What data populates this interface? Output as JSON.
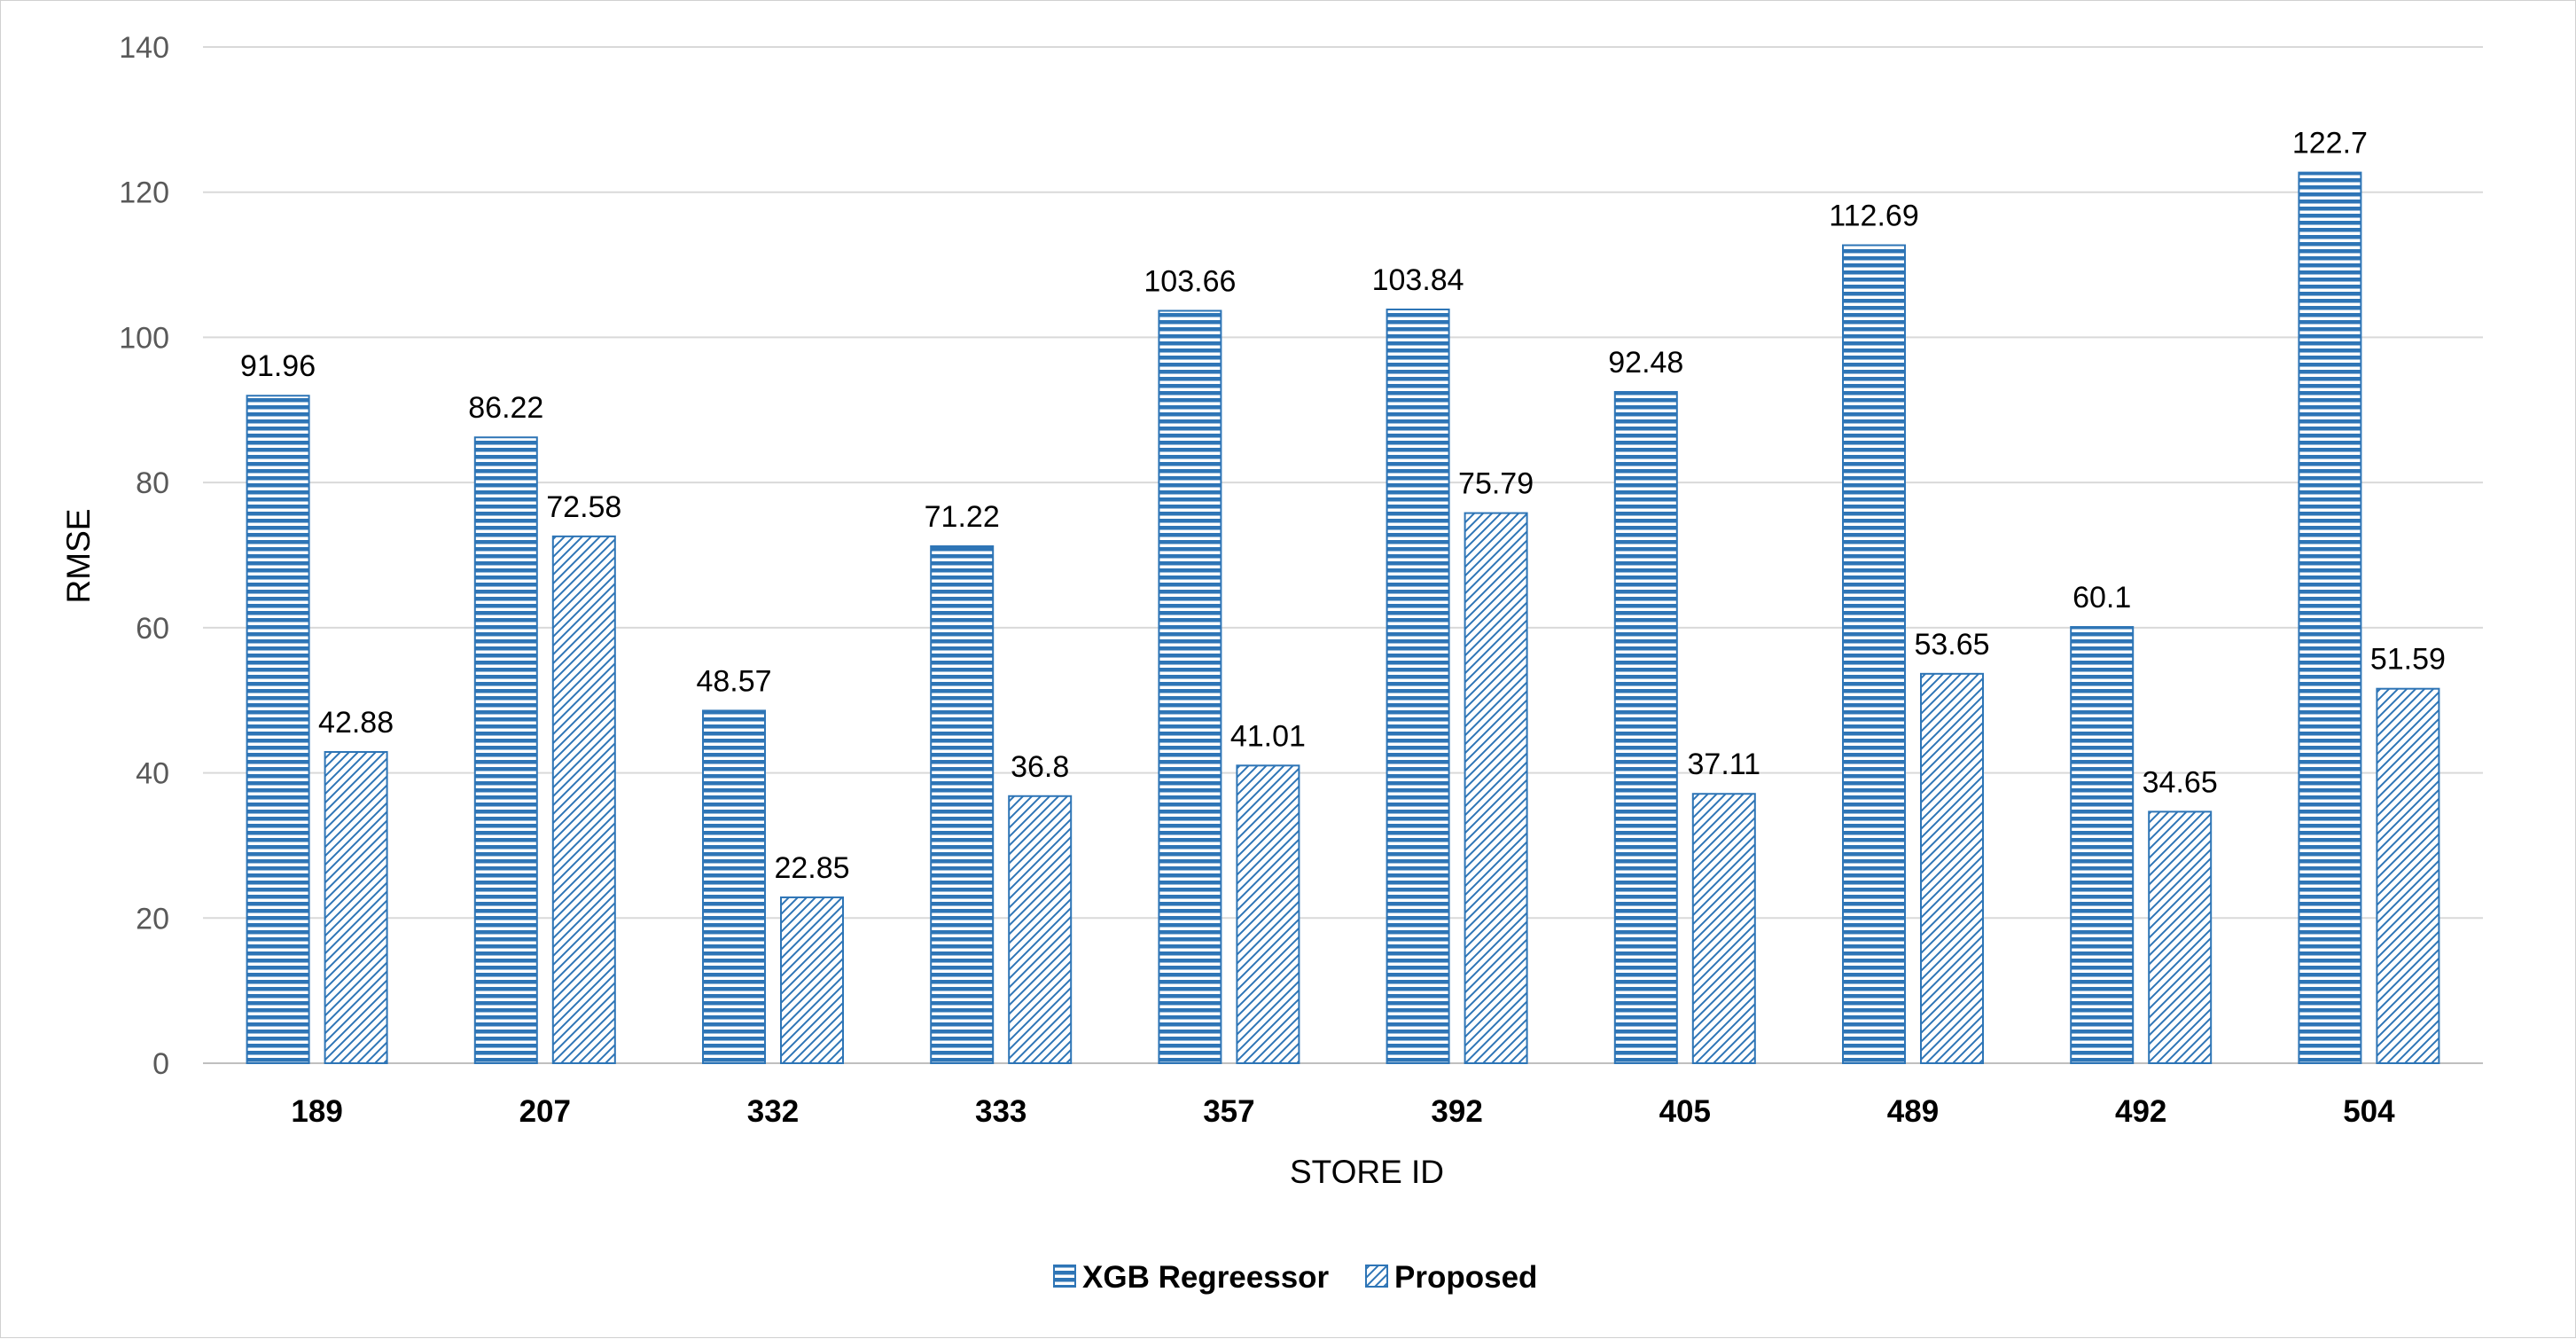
{
  "chart_data": {
    "type": "bar",
    "title": "",
    "xlabel": "STORE ID",
    "ylabel": "RMSE",
    "ylim": [
      0,
      140
    ],
    "yticks": [
      0,
      20,
      40,
      60,
      80,
      100,
      120,
      140
    ],
    "grid": true,
    "legend_position": "bottom",
    "categories": [
      "189",
      "207",
      "332",
      "333",
      "357",
      "392",
      "405",
      "489",
      "492",
      "504"
    ],
    "series": [
      {
        "name": "XGB Regreessor",
        "pattern": "horizontal-lines",
        "color": "#2e75b6",
        "values": [
          91.96,
          86.22,
          48.57,
          71.22,
          103.66,
          103.84,
          92.48,
          112.69,
          60.1,
          122.7
        ],
        "labels": [
          "91.96",
          "86.22",
          "48.57",
          "71.22",
          "103.66",
          "103.84",
          "92.48",
          "112.69",
          "60.1",
          "122.7"
        ]
      },
      {
        "name": "Proposed",
        "pattern": "diagonal-hatch",
        "color": "#2e75b6",
        "values": [
          42.88,
          72.58,
          22.85,
          36.8,
          41.01,
          75.79,
          37.11,
          53.65,
          34.65,
          51.59
        ],
        "labels": [
          "42.88",
          "72.58",
          "22.85",
          "36.8",
          "41.01",
          "75.79",
          "37.11",
          "53.65",
          "34.65",
          "51.59"
        ]
      }
    ]
  }
}
